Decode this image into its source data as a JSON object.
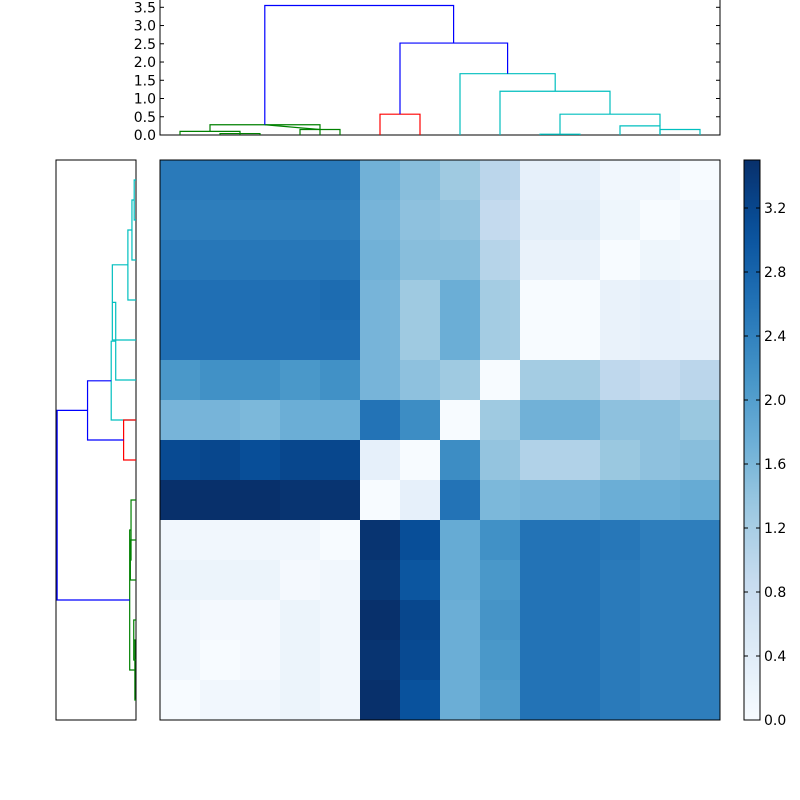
{
  "chart_data": [
    {
      "type": "dendrogram",
      "orientation": "top",
      "ylim": [
        0,
        3.7
      ],
      "y_ticks": [
        "0.0",
        "0.5",
        "1.0",
        "1.5",
        "2.0",
        "2.5",
        "3.0",
        "3.5"
      ],
      "y_tick_values": [
        0,
        0.5,
        1.0,
        1.5,
        2.0,
        2.5,
        3.0,
        3.5
      ],
      "leaf_count": 14,
      "links": [
        {
          "x": [
            0.5,
            0.5,
            2.0,
            2.0
          ],
          "y": [
            0,
            0.1,
            0.1,
            0
          ],
          "color": "#008000"
        },
        {
          "x": [
            1.5,
            1.5,
            2.5,
            2.5
          ],
          "y": [
            0,
            0.04,
            0.04,
            0
          ],
          "color": "#008000"
        },
        {
          "x": [
            1.25,
            1.25,
            4.0,
            4.0
          ],
          "y": [
            0.1,
            0.28,
            0.28,
            0
          ],
          "color": "#008000"
        },
        {
          "x": [
            3.5,
            3.5,
            4.5,
            4.5
          ],
          "y": [
            0,
            0.15,
            0.15,
            0
          ],
          "color": "#008000"
        },
        {
          "x": [
            2.62,
            2.62,
            4.0,
            4.0
          ],
          "y": [
            0.28,
            0.28,
            0.15,
            0.15
          ],
          "color": "#008000"
        },
        {
          "x": [
            5.5,
            5.5,
            6.5,
            6.5
          ],
          "y": [
            0,
            0.57,
            0.57,
            0
          ],
          "color": "#ff0000"
        },
        {
          "x": [
            9.5,
            9.5,
            10.5,
            10.5
          ],
          "y": [
            0,
            0.02,
            0.02,
            0
          ],
          "color": "#00bfbf"
        },
        {
          "x": [
            11.5,
            11.5,
            12.5,
            12.5
          ],
          "y": [
            0,
            0.25,
            0.25,
            0
          ],
          "color": "#00bfbf"
        },
        {
          "x": [
            12.5,
            12.5,
            13.5,
            13.5
          ],
          "y": [
            0,
            0.15,
            0.15,
            0
          ],
          "color": "#00bfbf"
        },
        {
          "x": [
            10.0,
            10.0,
            12.5,
            12.5
          ],
          "y": [
            0.02,
            0.57,
            0.57,
            0.25
          ],
          "color": "#00bfbf"
        },
        {
          "x": [
            8.5,
            8.5,
            11.25,
            11.25
          ],
          "y": [
            0,
            1.2,
            1.2,
            0.57
          ],
          "color": "#00bfbf"
        },
        {
          "x": [
            7.5,
            7.5,
            9.88,
            9.88
          ],
          "y": [
            0,
            1.68,
            1.68,
            1.2
          ],
          "color": "#00bfbf"
        },
        {
          "x": [
            6.0,
            6.0,
            8.69,
            8.69
          ],
          "y": [
            0.57,
            2.52,
            2.52,
            1.68
          ],
          "color": "#0000ff"
        },
        {
          "x": [
            2.62,
            2.62,
            7.34,
            7.34
          ],
          "y": [
            0.28,
            3.55,
            3.55,
            2.52
          ],
          "color": "#0000ff"
        }
      ]
    },
    {
      "type": "dendrogram",
      "orientation": "left",
      "leaf_count": 14,
      "links": [
        {
          "x": [
            0.5,
            0.5,
            1.5,
            1.5
          ],
          "y": [
            0,
            0.08,
            0.08,
            0
          ],
          "color": "#00bfbf"
        },
        {
          "x": [
            1.0,
            1.0,
            2.5,
            2.5
          ],
          "y": [
            0.08,
            0.18,
            0.18,
            0
          ],
          "color": "#00bfbf"
        },
        {
          "x": [
            1.75,
            1.75,
            3.5,
            3.5
          ],
          "y": [
            0.18,
            0.36,
            0.36,
            0
          ],
          "color": "#00bfbf"
        },
        {
          "x": [
            2.62,
            2.62,
            4.5,
            4.5
          ],
          "y": [
            0.36,
            1.05,
            1.05,
            0
          ],
          "color": "#00bfbf"
        },
        {
          "x": [
            3.56,
            3.56,
            5.5,
            5.5
          ],
          "y": [
            1.05,
            0.9,
            0.9,
            0
          ],
          "color": "#00bfbf"
        },
        {
          "x": [
            4.53,
            4.53,
            6.5,
            6.5
          ],
          "y": [
            0.9,
            1.1,
            1.1,
            0
          ],
          "color": "#00bfbf"
        },
        {
          "x": [
            6.5,
            6.5,
            7.5,
            7.5
          ],
          "y": [
            0,
            0.55,
            0.55,
            0
          ],
          "color": "#ff0000"
        },
        {
          "x": [
            5.52,
            5.52,
            7.0,
            7.0
          ],
          "y": [
            1.1,
            2.15,
            2.15,
            0.55
          ],
          "color": "#0000ff"
        },
        {
          "x": [
            9.5,
            9.5,
            10.5,
            10.5
          ],
          "y": [
            0,
            0.25,
            0.25,
            0
          ],
          "color": "#008000"
        },
        {
          "x": [
            8.5,
            8.5,
            10.0,
            10.0
          ],
          "y": [
            0,
            0.22,
            0.22,
            0.25
          ],
          "color": "#008000"
        },
        {
          "x": [
            11.5,
            11.5,
            12.5,
            12.5
          ],
          "y": [
            0,
            0.1,
            0.1,
            0
          ],
          "color": "#008000"
        },
        {
          "x": [
            12.0,
            12.0,
            13.5,
            13.5
          ],
          "y": [
            0.1,
            0.05,
            0.05,
            0
          ],
          "color": "#008000"
        },
        {
          "x": [
            9.25,
            9.25,
            12.75,
            12.75
          ],
          "y": [
            0.22,
            0.28,
            0.28,
            0.05
          ],
          "color": "#008000"
        },
        {
          "x": [
            6.26,
            6.26,
            11.0,
            11.0
          ],
          "y": [
            2.15,
            3.5,
            3.5,
            0.28
          ],
          "color": "#0000ff"
        }
      ]
    },
    {
      "type": "heatmap",
      "rows": 14,
      "cols": 14,
      "colormap": "Blues",
      "vmin": 0,
      "vmax": 3.5,
      "values": [
        [
          2.5,
          2.5,
          2.5,
          2.5,
          2.5,
          1.7,
          1.5,
          1.3,
          1.0,
          0.3,
          0.3,
          0.1,
          0.1,
          0.0
        ],
        [
          2.45,
          2.45,
          2.45,
          2.45,
          2.45,
          1.65,
          1.45,
          1.4,
          0.9,
          0.35,
          0.35,
          0.15,
          0.0,
          0.1
        ],
        [
          2.55,
          2.55,
          2.55,
          2.55,
          2.55,
          1.7,
          1.5,
          1.5,
          1.05,
          0.25,
          0.25,
          0.0,
          0.15,
          0.1
        ],
        [
          2.65,
          2.65,
          2.65,
          2.65,
          2.7,
          1.65,
          1.3,
          1.75,
          1.25,
          0.0,
          0.0,
          0.25,
          0.3,
          0.25
        ],
        [
          2.65,
          2.65,
          2.65,
          2.65,
          2.65,
          1.65,
          1.3,
          1.75,
          1.25,
          0.0,
          0.0,
          0.25,
          0.3,
          0.3
        ],
        [
          2.1,
          2.2,
          2.2,
          2.1,
          2.2,
          1.65,
          1.45,
          1.3,
          0.0,
          1.25,
          1.25,
          0.95,
          0.85,
          1.0
        ],
        [
          1.65,
          1.65,
          1.6,
          1.75,
          1.75,
          2.6,
          2.25,
          0.0,
          1.3,
          1.7,
          1.7,
          1.45,
          1.45,
          1.35
        ],
        [
          3.15,
          3.2,
          3.1,
          3.2,
          3.2,
          0.3,
          0.0,
          2.25,
          1.4,
          1.1,
          1.1,
          1.35,
          1.45,
          1.5
        ],
        [
          3.5,
          3.5,
          3.5,
          3.45,
          3.45,
          0.0,
          0.3,
          2.6,
          1.6,
          1.65,
          1.65,
          1.75,
          1.75,
          1.8
        ],
        [
          0.1,
          0.1,
          0.1,
          0.1,
          0.0,
          3.45,
          3.1,
          1.8,
          2.2,
          2.6,
          2.6,
          2.55,
          2.45,
          2.45
        ],
        [
          0.2,
          0.2,
          0.2,
          0.05,
          0.1,
          3.4,
          3.0,
          1.8,
          2.1,
          2.6,
          2.6,
          2.5,
          2.45,
          2.45
        ],
        [
          0.1,
          0.05,
          0.05,
          0.2,
          0.1,
          3.5,
          3.2,
          1.75,
          2.15,
          2.6,
          2.6,
          2.5,
          2.45,
          2.45
        ],
        [
          0.1,
          0.0,
          0.05,
          0.2,
          0.1,
          3.45,
          3.15,
          1.75,
          2.1,
          2.6,
          2.6,
          2.5,
          2.45,
          2.45
        ],
        [
          0.0,
          0.1,
          0.1,
          0.2,
          0.1,
          3.5,
          3.05,
          1.75,
          2.05,
          2.6,
          2.6,
          2.5,
          2.45,
          2.45
        ]
      ]
    },
    {
      "type": "colorbar",
      "colormap": "Blues",
      "ylim": [
        0,
        3.5
      ],
      "ticks": [
        "0.0",
        "0.4",
        "0.8",
        "1.2",
        "1.6",
        "2.0",
        "2.4",
        "2.8",
        "3.2"
      ],
      "tick_values": [
        0.0,
        0.4,
        0.8,
        1.2,
        1.6,
        2.0,
        2.4,
        2.8,
        3.2
      ]
    }
  ]
}
